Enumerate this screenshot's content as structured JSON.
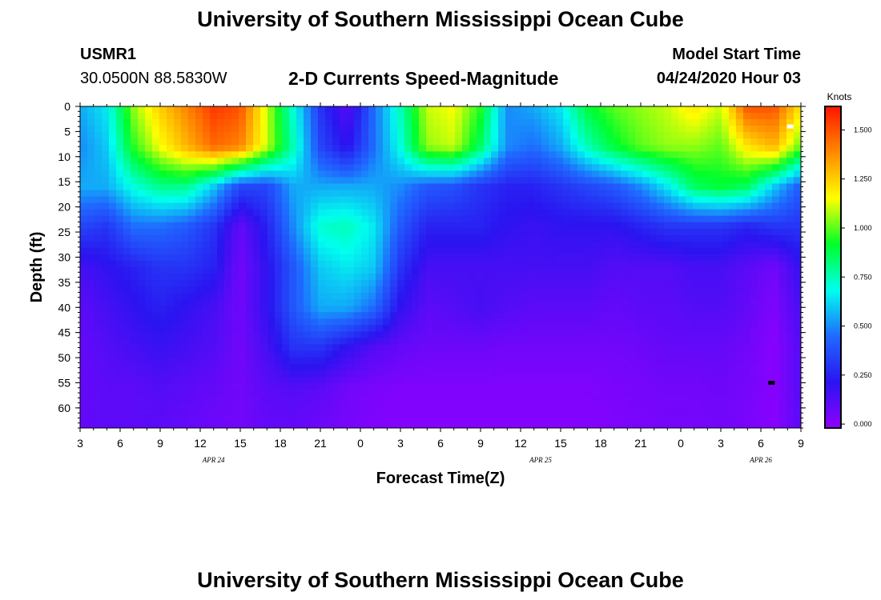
{
  "page": {
    "title_top": "University of Southern Mississippi Ocean Cube",
    "title_bottom": "University of Southern Mississippi Ocean Cube",
    "station": "USMR1",
    "coords": "30.0500N 88.5830W",
    "plot_title": "2-D Currents Speed-Magnitude",
    "model_label": "Model Start Time",
    "model_time": "04/24/2020 Hour 03"
  },
  "colors": {
    "gradient": [
      "#9000ff",
      "#2a14f0",
      "#1f6aff",
      "#00ffee",
      "#00ff2a",
      "#ffff00",
      "#ff8a00",
      "#ff1500"
    ]
  },
  "chart_data": {
    "type": "heatmap",
    "title": "2-D Currents Speed-Magnitude",
    "xlabel": "Forecast Time(Z)",
    "ylabel": "Depth (ft)",
    "x_ticks": [
      "3",
      "6",
      "9",
      "12",
      "15",
      "18",
      "21",
      "0",
      "3",
      "6",
      "9",
      "12",
      "15",
      "18",
      "21",
      "0",
      "3",
      "6",
      "9"
    ],
    "x_range_hours": [
      3,
      57
    ],
    "date_labels": [
      {
        "text": "APR 24",
        "hour": 13
      },
      {
        "text": "APR 25",
        "hour": 37.5
      },
      {
        "text": "APR 26",
        "hour": 54
      }
    ],
    "y_ticks": [
      0,
      5,
      10,
      15,
      20,
      25,
      30,
      35,
      40,
      45,
      50,
      55,
      60
    ],
    "y_range_ft": [
      0,
      64
    ],
    "colorbar": {
      "title": "Knots",
      "ticks": [
        "1.500",
        "1.250",
        "1.000",
        "0.750",
        "0.500",
        "0.250",
        "0.000"
      ],
      "tick_values": [
        1.5,
        1.25,
        1.0,
        0.75,
        0.5,
        0.25,
        0.0
      ],
      "range": [
        -0.02,
        1.62
      ]
    },
    "speed_grid_knots": {
      "hours": [
        3,
        5,
        7,
        9,
        11,
        13,
        15,
        17,
        19,
        21,
        23,
        25,
        27,
        29,
        31,
        33,
        35,
        37,
        39,
        41,
        43,
        45,
        47,
        49,
        51,
        53,
        55,
        57
      ],
      "depths_ft": [
        0,
        8,
        16,
        24,
        32,
        40,
        48,
        56,
        64
      ],
      "values": [
        [
          0.55,
          0.65,
          1.05,
          1.25,
          1.4,
          1.55,
          1.5,
          1.1,
          0.7,
          0.3,
          0.1,
          0.45,
          0.75,
          1.1,
          1.15,
          0.95,
          0.5,
          0.55,
          0.65,
          0.9,
          1.0,
          1.05,
          1.1,
          1.2,
          1.1,
          1.5,
          1.5,
          1.2
        ],
        [
          0.5,
          0.6,
          0.95,
          1.15,
          1.3,
          1.45,
          1.4,
          1.1,
          0.75,
          0.35,
          0.2,
          0.45,
          0.7,
          1.05,
          1.1,
          0.85,
          0.5,
          0.45,
          0.55,
          0.75,
          0.9,
          1.0,
          1.05,
          1.05,
          1.0,
          1.2,
          1.3,
          1.0
        ],
        [
          0.55,
          0.55,
          0.7,
          0.8,
          0.8,
          0.6,
          0.35,
          0.35,
          0.55,
          0.55,
          0.55,
          0.55,
          0.5,
          0.4,
          0.38,
          0.3,
          0.25,
          0.25,
          0.3,
          0.35,
          0.4,
          0.5,
          0.65,
          0.85,
          0.9,
          0.85,
          0.6,
          0.4
        ],
        [
          0.35,
          0.3,
          0.45,
          0.45,
          0.4,
          0.3,
          0.08,
          0.25,
          0.5,
          0.72,
          0.75,
          0.65,
          0.4,
          0.25,
          0.25,
          0.25,
          0.2,
          0.18,
          0.2,
          0.2,
          0.2,
          0.25,
          0.3,
          0.3,
          0.3,
          0.25,
          0.3,
          0.3
        ],
        [
          0.15,
          0.2,
          0.25,
          0.3,
          0.3,
          0.25,
          0.05,
          0.2,
          0.4,
          0.6,
          0.65,
          0.6,
          0.3,
          0.15,
          0.15,
          0.15,
          0.15,
          0.15,
          0.15,
          0.15,
          0.12,
          0.12,
          0.12,
          0.15,
          0.15,
          0.1,
          0.05,
          0.2
        ],
        [
          0.1,
          0.15,
          0.2,
          0.25,
          0.2,
          0.15,
          0.05,
          0.2,
          0.4,
          0.55,
          0.55,
          0.45,
          0.2,
          0.1,
          0.12,
          0.15,
          0.12,
          0.1,
          0.1,
          0.1,
          0.08,
          0.1,
          0.1,
          0.12,
          0.12,
          0.08,
          0.02,
          0.15
        ],
        [
          0.08,
          0.12,
          0.15,
          0.18,
          0.15,
          0.12,
          0.05,
          0.15,
          0.3,
          0.3,
          0.2,
          0.12,
          0.08,
          0.06,
          0.06,
          0.06,
          0.05,
          0.05,
          0.05,
          0.05,
          0.05,
          0.06,
          0.08,
          0.08,
          0.08,
          0.05,
          0.0,
          0.12
        ],
        [
          0.08,
          0.1,
          0.1,
          0.12,
          0.1,
          0.08,
          0.05,
          0.1,
          0.12,
          0.1,
          0.05,
          0.03,
          0.02,
          0.02,
          0.02,
          0.02,
          0.02,
          0.02,
          0.02,
          0.02,
          0.03,
          0.04,
          0.05,
          0.05,
          0.06,
          0.04,
          0.0,
          0.12
        ],
        [
          0.08,
          0.1,
          0.1,
          0.1,
          0.08,
          0.06,
          0.05,
          0.08,
          0.08,
          0.06,
          0.04,
          0.02,
          0.01,
          0.01,
          0.01,
          0.01,
          0.01,
          0.01,
          0.01,
          0.01,
          0.02,
          0.03,
          0.04,
          0.04,
          0.05,
          0.03,
          0.0,
          0.1
        ]
      ]
    },
    "markers": [
      {
        "name": "white-marker",
        "hour": 56.2,
        "depth": 4,
        "color": "#ffffff"
      },
      {
        "name": "black-marker",
        "hour": 54.8,
        "depth": 55,
        "color": "#000000"
      }
    ]
  }
}
